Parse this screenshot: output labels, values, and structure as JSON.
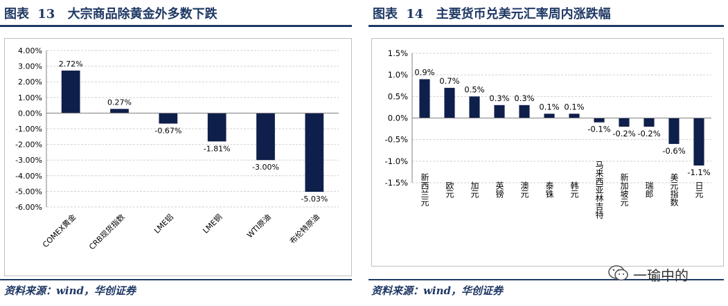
{
  "left_panel": {
    "figure_label": "图表",
    "figure_number": "13",
    "title": "大宗商品除黄金外多数下跌",
    "source": "资料来源：wind，华创证券"
  },
  "right_panel": {
    "figure_label": "图表",
    "figure_number": "14",
    "title": "主要货币兑美元汇率周内涨跌幅",
    "source": "资料来源：wind，华创证券"
  },
  "watermark": {
    "text": "一瑜中的",
    "icon": "wechat-icon"
  },
  "colors": {
    "bar": "#0f1f4b",
    "title": "#1f3864",
    "grid": "#d0d0d0"
  },
  "chart_data": [
    {
      "type": "bar",
      "title": "",
      "categories": [
        "COMEX黄金",
        "CRB现货指数",
        "LME铝",
        "LME铜",
        "WTI原油",
        "布伦特原油"
      ],
      "values": [
        2.72,
        0.27,
        -0.67,
        -1.81,
        -3.0,
        -5.03
      ],
      "data_labels": [
        "2.72%",
        "0.27%",
        "-0.67%",
        "-1.81%",
        "-3.00%",
        "-5.03%"
      ],
      "yticks": [
        "4.00%",
        "3.00%",
        "2.00%",
        "1.00%",
        "0.00%",
        "-1.00%",
        "-2.00%",
        "-3.00%",
        "-4.00%",
        "-5.00%",
        "-6.00%"
      ],
      "ylim": [
        -6,
        4
      ],
      "xlabel": "",
      "ylabel": "",
      "grid": true
    },
    {
      "type": "bar",
      "title": "",
      "categories": [
        "新西兰元",
        "欧元",
        "加元",
        "英镑",
        "澳元",
        "泰铢",
        "韩元",
        "马来西亚林吉特",
        "新加坡元",
        "瑞郎",
        "美元指数",
        "日元"
      ],
      "values": [
        0.9,
        0.7,
        0.5,
        0.3,
        0.3,
        0.1,
        0.1,
        -0.1,
        -0.2,
        -0.2,
        -0.6,
        -1.1
      ],
      "data_labels": [
        "0.9%",
        "0.7%",
        "0.5%",
        "0.3%",
        "0.3%",
        "0.1%",
        "0.1%",
        "-0.1%",
        "-0.2%",
        "-0.2%",
        "-0.6%",
        "-1.1%"
      ],
      "yticks": [
        "1.5%",
        "1.0%",
        "0.5%",
        "0.0%",
        "-0.5%",
        "-1.0%",
        "-1.5%"
      ],
      "ylim": [
        -1.5,
        1.5
      ],
      "xlabel": "",
      "ylabel": "",
      "grid": true
    }
  ]
}
